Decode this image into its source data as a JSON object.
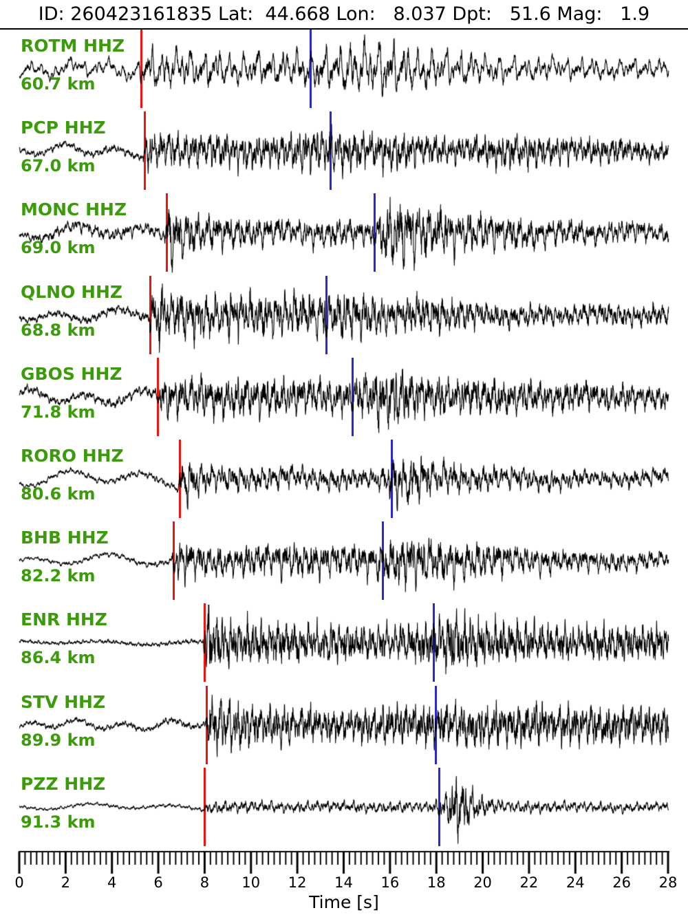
{
  "header": {
    "title": "ID: 260423161835 Lat:  44.668 Lon:   8.037 Dpt:   51.6 Mag:   1.9",
    "event_id": "260423161835",
    "lat": 44.668,
    "lon": 8.037,
    "depth_km": 51.6,
    "magnitude": 1.9
  },
  "colors": {
    "background": "#ffffff",
    "trace": "#000000",
    "station_label": "#3c9b0a",
    "p_pick": "#f01510",
    "s_pick": "#2a2ad0",
    "axis": "#000000"
  },
  "axis": {
    "label": "Time [s]",
    "min": 0,
    "max": 28,
    "major_step": 2,
    "minor_step": 0.25,
    "tick_labels": [
      "0",
      "2",
      "4",
      "6",
      "8",
      "10",
      "12",
      "14",
      "16",
      "18",
      "20",
      "22",
      "24",
      "26",
      "28"
    ]
  },
  "chart_data": {
    "type": "line",
    "variant": "seismogram-record-section",
    "title": "ID: 260423161835 Lat:  44.668 Lon:   8.037 Dpt:   51.6 Mag:   1.9",
    "xlabel": "Time [s]",
    "xlim": [
      0,
      28
    ],
    "grid": false,
    "legend": "none",
    "pick_legend": {
      "red_line": "P pick",
      "blue_line": "S pick"
    },
    "series": [
      {
        "station": "ROTM",
        "channel": "HHZ",
        "label": "ROTM HHZ",
        "distance_label": "60.7 km",
        "distance_km": 60.7,
        "p_pick_s": 5.28,
        "s_pick_s": 12.57,
        "seed": 11,
        "fscale": 0.75,
        "noise_w": 0.5,
        "lf": {
          "amp": 6,
          "period": 1.6
        },
        "envelope": [
          [
            0,
            9
          ],
          [
            5.15,
            11
          ],
          [
            5.4,
            32
          ],
          [
            7,
            26
          ],
          [
            10,
            23
          ],
          [
            12.6,
            26
          ],
          [
            14,
            33
          ],
          [
            15.5,
            40
          ],
          [
            17,
            30
          ],
          [
            19,
            25
          ],
          [
            21,
            19
          ],
          [
            24,
            15
          ],
          [
            28,
            13
          ]
        ]
      },
      {
        "station": "PCP",
        "channel": "HHZ",
        "label": "PCP HHZ",
        "distance_label": "67.0 km",
        "distance_km": 67.0,
        "p_pick_s": 5.41,
        "s_pick_s": 13.43,
        "seed": 22,
        "fscale": 1.25,
        "noise_w": 0.9,
        "lf": {
          "amp": 6,
          "period": 2.2
        },
        "envelope": [
          [
            0,
            4
          ],
          [
            5.3,
            5
          ],
          [
            5.55,
            27
          ],
          [
            7,
            22
          ],
          [
            9,
            22
          ],
          [
            11,
            20
          ],
          [
            13.4,
            27
          ],
          [
            15,
            23
          ],
          [
            17,
            20
          ],
          [
            19,
            17
          ],
          [
            21,
            24
          ],
          [
            22.5,
            20
          ],
          [
            24,
            15
          ],
          [
            26,
            17
          ],
          [
            28,
            12
          ]
        ]
      },
      {
        "station": "MONC",
        "channel": "HHZ",
        "label": "MONC HHZ",
        "distance_label": "69.0 km",
        "distance_km": 69.0,
        "p_pick_s": 6.36,
        "s_pick_s": 15.35,
        "seed": 33,
        "fscale": 1.0,
        "noise_w": 0.8,
        "lf": {
          "amp": 7,
          "period": 3.0
        },
        "envelope": [
          [
            0,
            5
          ],
          [
            3.5,
            9
          ],
          [
            6.25,
            8
          ],
          [
            6.5,
            42
          ],
          [
            7.5,
            26
          ],
          [
            9,
            20
          ],
          [
            12,
            17
          ],
          [
            15.3,
            18
          ],
          [
            16,
            44
          ],
          [
            17.5,
            40
          ],
          [
            19,
            26
          ],
          [
            21,
            22
          ],
          [
            23,
            18
          ],
          [
            26,
            15
          ],
          [
            28,
            13
          ]
        ]
      },
      {
        "station": "QLNO",
        "channel": "HHZ",
        "label": "QLNO HHZ",
        "distance_label": "68.8 km",
        "distance_km": 68.8,
        "p_pick_s": 5.67,
        "s_pick_s": 13.26,
        "seed": 44,
        "fscale": 1.15,
        "noise_w": 0.9,
        "lf": {
          "amp": 6,
          "period": 2.6
        },
        "envelope": [
          [
            0,
            4
          ],
          [
            5.55,
            6
          ],
          [
            5.8,
            38
          ],
          [
            7,
            30
          ],
          [
            9,
            28
          ],
          [
            11,
            26
          ],
          [
            13.3,
            30
          ],
          [
            14.5,
            29
          ],
          [
            16,
            22
          ],
          [
            18,
            24
          ],
          [
            20,
            16
          ],
          [
            23,
            13
          ],
          [
            26,
            15
          ],
          [
            28,
            12
          ]
        ]
      },
      {
        "station": "GBOS",
        "channel": "HHZ",
        "label": "GBOS HHZ",
        "distance_label": "71.8 km",
        "distance_km": 71.8,
        "p_pick_s": 5.99,
        "s_pick_s": 14.4,
        "seed": 55,
        "fscale": 1.1,
        "noise_w": 0.9,
        "lf": {
          "amp": 7,
          "period": 2.4
        },
        "envelope": [
          [
            0,
            6
          ],
          [
            2,
            5
          ],
          [
            5.9,
            7
          ],
          [
            6.15,
            22
          ],
          [
            7.5,
            26
          ],
          [
            10,
            24
          ],
          [
            12.5,
            22
          ],
          [
            14.3,
            22
          ],
          [
            15,
            34
          ],
          [
            16,
            38
          ],
          [
            17.5,
            28
          ],
          [
            19,
            24
          ],
          [
            22,
            21
          ],
          [
            25,
            18
          ],
          [
            28,
            15
          ]
        ]
      },
      {
        "station": "RORO",
        "channel": "HHZ",
        "label": "RORO HHZ",
        "distance_label": "80.6 km",
        "distance_km": 80.6,
        "p_pick_s": 6.92,
        "s_pick_s": 16.07,
        "seed": 66,
        "fscale": 1.0,
        "noise_w": 0.8,
        "lf": {
          "amp": 8,
          "period": 3.2
        },
        "envelope": [
          [
            0,
            3
          ],
          [
            6.8,
            5
          ],
          [
            7.05,
            32
          ],
          [
            8,
            18
          ],
          [
            10,
            16
          ],
          [
            13,
            15
          ],
          [
            15.5,
            13
          ],
          [
            16.2,
            34
          ],
          [
            17,
            30
          ],
          [
            18.5,
            22
          ],
          [
            20,
            17
          ],
          [
            22,
            15
          ],
          [
            25,
            11
          ],
          [
            28,
            11
          ]
        ]
      },
      {
        "station": "BHB",
        "channel": "HHZ",
        "label": "BHB HHZ",
        "distance_label": "82.2 km",
        "distance_km": 82.2,
        "p_pick_s": 6.66,
        "s_pick_s": 15.7,
        "seed": 77,
        "fscale": 1.05,
        "noise_w": 0.85,
        "lf": {
          "amp": 6,
          "period": 3.4
        },
        "envelope": [
          [
            0,
            2.5
          ],
          [
            6.55,
            4
          ],
          [
            6.8,
            30
          ],
          [
            8,
            19
          ],
          [
            10,
            21
          ],
          [
            12,
            23
          ],
          [
            14,
            19
          ],
          [
            15.7,
            25
          ],
          [
            16.6,
            34
          ],
          [
            18,
            27
          ],
          [
            20,
            23
          ],
          [
            22,
            17
          ],
          [
            25,
            13
          ],
          [
            28,
            11
          ]
        ]
      },
      {
        "station": "ENR",
        "channel": "HHZ",
        "label": "ENR HHZ",
        "distance_label": "86.4 km",
        "distance_km": 86.4,
        "p_pick_s": 7.99,
        "s_pick_s": 17.89,
        "seed": 88,
        "fscale": 1.3,
        "noise_w": 1.0,
        "lf": {
          "amp": 2,
          "period": 4.0
        },
        "envelope": [
          [
            0,
            2
          ],
          [
            7.92,
            3
          ],
          [
            8.12,
            46
          ],
          [
            9,
            30
          ],
          [
            11,
            26
          ],
          [
            14,
            23
          ],
          [
            16,
            21
          ],
          [
            17.9,
            28
          ],
          [
            18.6,
            38
          ],
          [
            19.6,
            29
          ],
          [
            21,
            25
          ],
          [
            24,
            22
          ],
          [
            28,
            21
          ]
        ]
      },
      {
        "station": "STV",
        "channel": "HHZ",
        "label": "STV HHZ",
        "distance_label": "89.9 km",
        "distance_km": 89.9,
        "p_pick_s": 8.08,
        "s_pick_s": 17.97,
        "seed": 99,
        "fscale": 1.25,
        "noise_w": 1.0,
        "lf": {
          "amp": 5,
          "period": 2.0
        },
        "envelope": [
          [
            0,
            3
          ],
          [
            8,
            4
          ],
          [
            8.25,
            36
          ],
          [
            10,
            26
          ],
          [
            12,
            23
          ],
          [
            14,
            19
          ],
          [
            16,
            24
          ],
          [
            18,
            27
          ],
          [
            20,
            27
          ],
          [
            23,
            25
          ],
          [
            26,
            23
          ],
          [
            28,
            23
          ]
        ]
      },
      {
        "station": "PZZ",
        "channel": "HHZ",
        "label": "PZZ HHZ",
        "distance_label": "91.3 km",
        "distance_km": 91.3,
        "p_pick_s": 8.01,
        "s_pick_s": 18.14,
        "seed": 123,
        "fscale": 1.1,
        "noise_w": 0.8,
        "lf": {
          "amp": 3,
          "period": 3.5
        },
        "envelope": [
          [
            0,
            2
          ],
          [
            7.95,
            2.5
          ],
          [
            8.15,
            8
          ],
          [
            12,
            7
          ],
          [
            17.9,
            7
          ],
          [
            18.35,
            18
          ],
          [
            18.8,
            42
          ],
          [
            19.4,
            28
          ],
          [
            20,
            13
          ],
          [
            21,
            8
          ],
          [
            24,
            7
          ],
          [
            28,
            6
          ]
        ]
      }
    ]
  }
}
